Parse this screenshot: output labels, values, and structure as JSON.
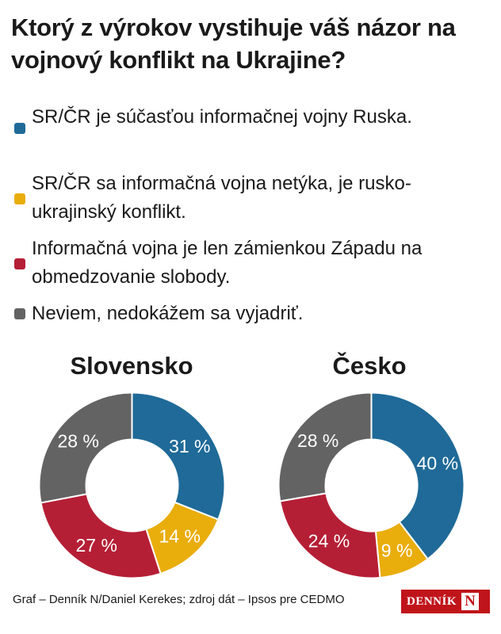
{
  "title": "Ktorý z výrokov vystihuje váš názor na vojnový konflikt na Ukrajine?",
  "legend": [
    {
      "label": "SR/ČR je súčasťou informačnej vojny Ruska.",
      "color": "#1f6a98"
    },
    {
      "label": "SR/ČR sa informačná vojna netýka, je rusko-ukrajinský konflikt.",
      "color": "#e9ad0c"
    },
    {
      "label": "Informačná vojna je len zámienkou Západu na obmedzovanie slobody.",
      "color": "#b51f36"
    },
    {
      "label": "Neviem, nedokážem sa vyjadriť.",
      "color": "#636363"
    }
  ],
  "chart_data": [
    {
      "type": "pie",
      "title": "Slovensko",
      "categories": [
        "SR/ČR je súčasťou informačnej vojny Ruska.",
        "SR/ČR sa informačná vojna netýka, je rusko-ukrajinský konflikt.",
        "Informačná vojna je len zámienkou Západu na obmedzovanie slobody.",
        "Neviem, nedokážem sa vyjadriť."
      ],
      "values": [
        31,
        14,
        27,
        28
      ],
      "labels": [
        "31 %",
        "14 %",
        "27 %",
        "28 %"
      ],
      "colors": [
        "#1f6a98",
        "#e9ad0c",
        "#b51f36",
        "#636363"
      ],
      "donut": true
    },
    {
      "type": "pie",
      "title": "Česko",
      "categories": [
        "SR/ČR je súčasťou informačnej vojny Ruska.",
        "SR/ČR sa informačná vojna netýka, je rusko-ukrajinský konflikt.",
        "Informačná vojna je len zámienkou Západu na obmedzovanie slobody.",
        "Neviem, nedokážem sa vyjadriť."
      ],
      "values": [
        40,
        9,
        24,
        28
      ],
      "labels": [
        "40 %",
        "9 %",
        "24 %",
        "28 %"
      ],
      "colors": [
        "#1f6a98",
        "#e9ad0c",
        "#b51f36",
        "#636363"
      ],
      "donut": true
    }
  ],
  "footer": "Graf – Denník N/Daniel Kerekes; zdroj dát – Ipsos pre CEDMO",
  "logo": {
    "text": "DENNÍK",
    "box": "N"
  }
}
